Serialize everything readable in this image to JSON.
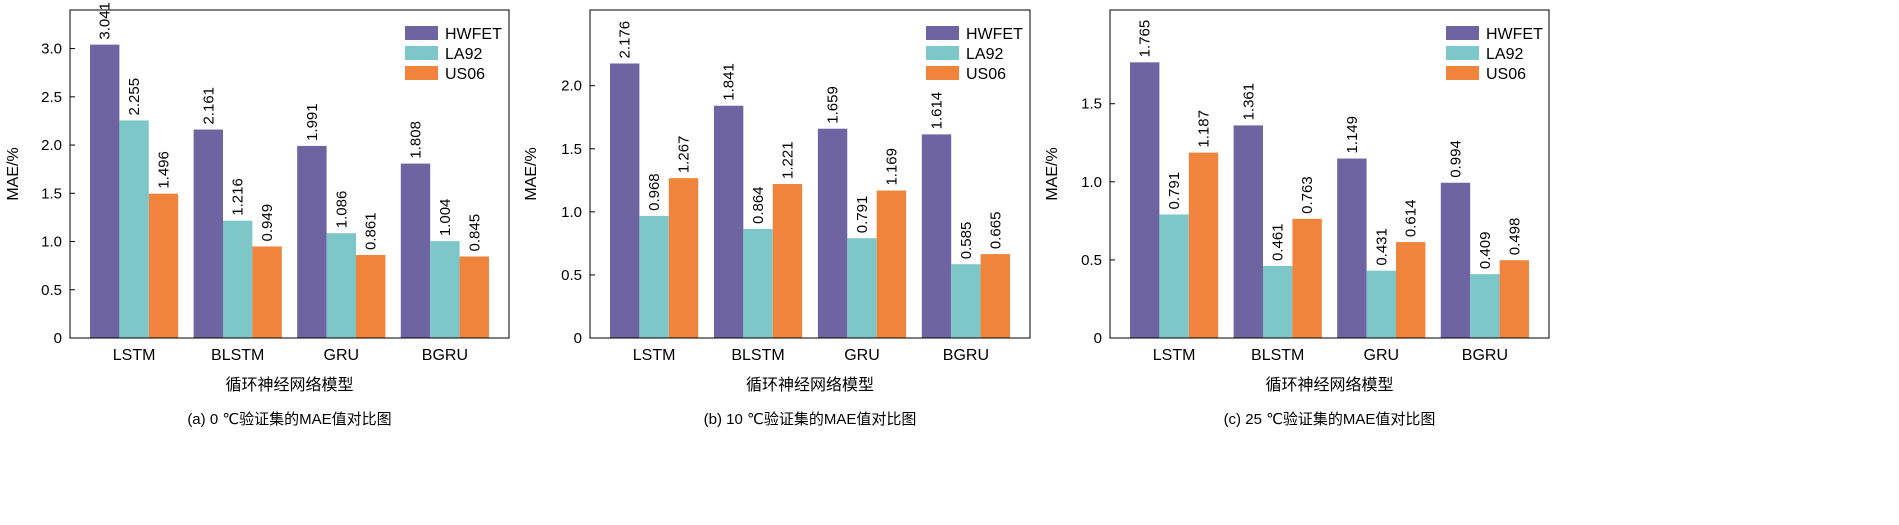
{
  "colors": {
    "HWFET": "#6e64a2",
    "LA92": "#7ec7c9",
    "US06": "#f0843c",
    "axis": "#000000"
  },
  "chart_data": [
    {
      "type": "bar",
      "title": "(a) 0 ℃验证集的MAE值对比图",
      "xlabel": "循环神经网络模型",
      "ylabel": "MAE/%",
      "categories": [
        "LSTM",
        "BLSTM",
        "GRU",
        "BGRU"
      ],
      "series": [
        {
          "name": "HWFET",
          "values": [
            3.041,
            2.161,
            1.991,
            1.808
          ]
        },
        {
          "name": "LA92",
          "values": [
            2.255,
            1.216,
            1.086,
            1.004
          ]
        },
        {
          "name": "US06",
          "values": [
            1.496,
            0.949,
            0.861,
            0.845
          ]
        }
      ],
      "data_labels": [
        [
          "3.041",
          "2.161",
          "1.991",
          "1.808"
        ],
        [
          "2.255",
          "1.216",
          "1.086",
          "1.004"
        ],
        [
          "1.496",
          "0.949",
          "0.861",
          "0.845"
        ]
      ],
      "ylim": [
        0,
        3.4
      ],
      "yticks": [
        0,
        0.5,
        1.0,
        1.5,
        2.0,
        2.5,
        3.0
      ],
      "ytick_labels": [
        "0",
        "0.5",
        "1.0",
        "1.5",
        "2.0",
        "2.5",
        "3.0"
      ],
      "legend_position": "top-right",
      "grid": false
    },
    {
      "type": "bar",
      "title": "(b) 10 ℃验证集的MAE值对比图",
      "xlabel": "循环神经网络模型",
      "ylabel": "MAE/%",
      "categories": [
        "LSTM",
        "BLSTM",
        "GRU",
        "BGRU"
      ],
      "series": [
        {
          "name": "HWFET",
          "values": [
            2.176,
            1.841,
            1.659,
            1.614
          ]
        },
        {
          "name": "LA92",
          "values": [
            0.968,
            0.864,
            0.791,
            0.585
          ]
        },
        {
          "name": "US06",
          "values": [
            1.267,
            1.221,
            1.169,
            0.665
          ]
        }
      ],
      "data_labels": [
        [
          "2.176",
          "1.841",
          "1.659",
          "1.614"
        ],
        [
          "0.968",
          "0.864",
          "0.791",
          "0.585"
        ],
        [
          "1.267",
          "1.221",
          "1.169",
          "0.665"
        ]
      ],
      "ylim": [
        0,
        2.6
      ],
      "yticks": [
        0,
        0.5,
        1.0,
        1.5,
        2.0
      ],
      "ytick_labels": [
        "0",
        "0.5",
        "1.0",
        "1.5",
        "2.0"
      ],
      "legend_position": "top-right",
      "grid": false
    },
    {
      "type": "bar",
      "title": "(c) 25 ℃验证集的MAE值对比图",
      "xlabel": "循环神经网络模型",
      "ylabel": "MAE/%",
      "categories": [
        "LSTM",
        "BLSTM",
        "GRU",
        "BGRU"
      ],
      "series": [
        {
          "name": "HWFET",
          "values": [
            1.765,
            1.361,
            1.149,
            0.994
          ]
        },
        {
          "name": "LA92",
          "values": [
            0.791,
            0.461,
            0.431,
            0.409
          ]
        },
        {
          "name": "US06",
          "values": [
            1.187,
            0.763,
            0.614,
            0.498
          ]
        }
      ],
      "data_labels": [
        [
          "1.765",
          "1.361",
          "1.149",
          "0.994"
        ],
        [
          "0.791",
          "0.461",
          "0.431",
          "0.409"
        ],
        [
          "1.187",
          "0.763",
          "0.614",
          "0.498"
        ]
      ],
      "ylim": [
        0,
        2.1
      ],
      "yticks": [
        0,
        0.5,
        1.0,
        1.5
      ],
      "ytick_labels": [
        "0",
        "0.5",
        "1.0",
        "1.5"
      ],
      "legend_position": "top-right",
      "grid": false
    }
  ]
}
